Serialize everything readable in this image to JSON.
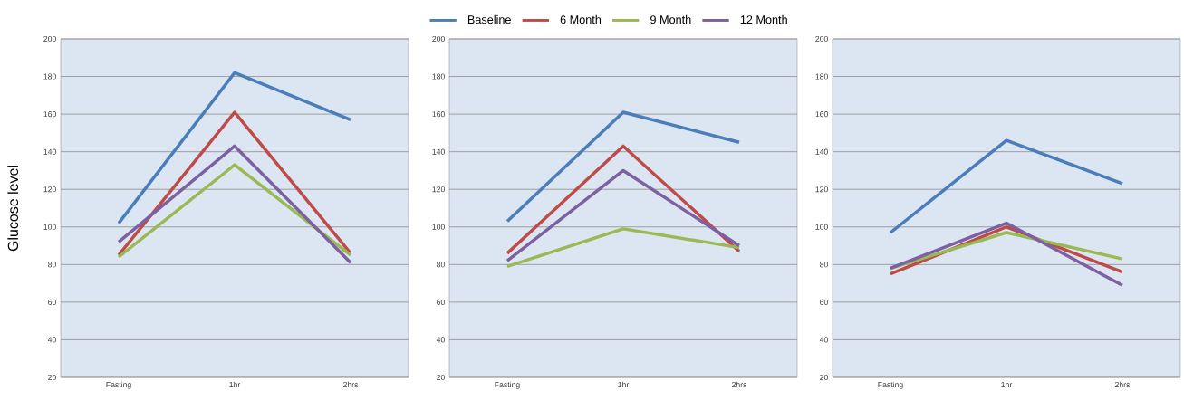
{
  "chart_data": [
    {
      "type": "line",
      "ylabel": "Glucose level",
      "categories": [
        "Fasting",
        "1hr",
        "2hrs"
      ],
      "ylim": [
        20,
        200
      ],
      "yticks": [
        20,
        40,
        60,
        80,
        100,
        120,
        140,
        160,
        180,
        200
      ],
      "grid": "y",
      "legend": false,
      "series": [
        {
          "color": "#4a7ebb",
          "values": [
            102,
            182,
            157
          ]
        },
        {
          "color": "#be4b48",
          "values": [
            85,
            161,
            86
          ]
        },
        {
          "color": "#98b954",
          "values": [
            84,
            133,
            85
          ]
        },
        {
          "color": "#7d60a0",
          "values": [
            92,
            143,
            81
          ]
        }
      ]
    },
    {
      "type": "line",
      "categories": [
        "Fasting",
        "1hr",
        "2hrs"
      ],
      "ylim": [
        20,
        200
      ],
      "yticks": [
        20,
        40,
        60,
        80,
        100,
        120,
        140,
        160,
        180,
        200
      ],
      "grid": "y",
      "legend": "top",
      "series": [
        {
          "name": "Baseline",
          "color": "#4a7ebb",
          "values": [
            103,
            161,
            145
          ]
        },
        {
          "name": "6 Month",
          "color": "#be4b48",
          "values": [
            86,
            143,
            87
          ]
        },
        {
          "name": "9 Month",
          "color": "#98b954",
          "values": [
            79,
            99,
            89
          ]
        },
        {
          "name": "12 Month",
          "color": "#7d60a0",
          "values": [
            82,
            130,
            90
          ]
        }
      ]
    },
    {
      "type": "line",
      "categories": [
        "Fasting",
        "1hr",
        "2hrs"
      ],
      "ylim": [
        20,
        200
      ],
      "yticks": [
        20,
        40,
        60,
        80,
        100,
        120,
        140,
        160,
        180,
        200
      ],
      "grid": "y",
      "legend": false,
      "series": [
        {
          "color": "#4a7ebb",
          "values": [
            97,
            146,
            123
          ]
        },
        {
          "color": "#be4b48",
          "values": [
            75,
            100,
            76
          ]
        },
        {
          "color": "#98b954",
          "values": [
            78,
            97,
            83
          ]
        },
        {
          "color": "#7d60a0",
          "values": [
            78,
            102,
            69
          ]
        }
      ]
    }
  ]
}
